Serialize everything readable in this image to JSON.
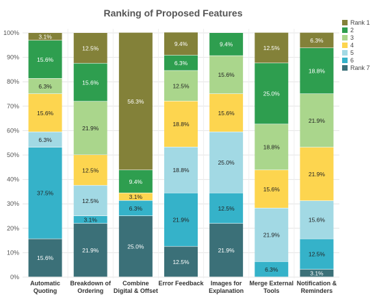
{
  "chart_data": {
    "type": "bar",
    "stacked": true,
    "title": "Ranking of Proposed Features",
    "xlabel": "",
    "ylabel": "",
    "ylim": [
      0,
      100
    ],
    "yticks": [
      "0%",
      "10%",
      "20%",
      "30%",
      "40%",
      "50%",
      "60%",
      "70%",
      "80%",
      "90%",
      "100%"
    ],
    "categories": [
      [
        "Automatic",
        "Quoting"
      ],
      [
        "Breakdown of",
        "Ordering"
      ],
      [
        "Combine",
        "Digital & Offset"
      ],
      [
        "Error Feedback"
      ],
      [
        "Images for",
        "Explanation"
      ],
      [
        "Merge External",
        "Tools"
      ],
      [
        "Notification &",
        "Reminders"
      ]
    ],
    "legend_position": "right",
    "series": [
      {
        "name": "Rank 7",
        "color": "#3b7078",
        "text_color": "#ffffff",
        "values": [
          15.6,
          21.9,
          25.0,
          12.5,
          21.9,
          0,
          3.1
        ],
        "labels": [
          "15.6%",
          "21.9%",
          "25.0%",
          "12.5%",
          "21.9%",
          "",
          "3.1%"
        ]
      },
      {
        "name": "6",
        "color": "#35b2c9",
        "text_color": "#222222",
        "values": [
          37.5,
          3.1,
          6.3,
          21.9,
          12.5,
          6.3,
          12.5
        ],
        "labels": [
          "37.5%",
          "3.1%",
          "6.3%",
          "21.9%",
          "12.5%",
          "6.3%",
          "12.5%"
        ]
      },
      {
        "name": "5",
        "color": "#a2d9e4",
        "text_color": "#222222",
        "values": [
          6.3,
          12.5,
          0,
          18.8,
          25.0,
          21.9,
          15.6
        ],
        "labels": [
          "6.3%",
          "12.5%",
          "",
          "18.8%",
          "25.0%",
          "21.9%",
          "15.6%"
        ]
      },
      {
        "name": "4",
        "color": "#fdd54f",
        "text_color": "#222222",
        "values": [
          15.6,
          12.5,
          3.1,
          18.8,
          15.6,
          15.6,
          21.9
        ],
        "labels": [
          "15.6%",
          "12.5%",
          "3.1%",
          "18.8%",
          "15.6%",
          "15.6%",
          "21.9%"
        ]
      },
      {
        "name": "3",
        "color": "#aad68c",
        "text_color": "#222222",
        "values": [
          6.3,
          21.9,
          0,
          12.5,
          15.6,
          18.8,
          21.9
        ],
        "labels": [
          "6.3%",
          "21.9%",
          "",
          "12.5%",
          "15.6%",
          "18.8%",
          "21.9%"
        ]
      },
      {
        "name": "2",
        "color": "#2e9e4f",
        "text_color": "#ffffff",
        "values": [
          15.6,
          15.6,
          9.4,
          6.3,
          9.4,
          25.0,
          18.8
        ],
        "labels": [
          "15.6%",
          "15.6%",
          "9.4%",
          "6.3%",
          "9.4%",
          "25.0%",
          "18.8%"
        ]
      },
      {
        "name": "Rank 1",
        "color": "#838139",
        "text_color": "#ffffff",
        "values": [
          3.1,
          12.5,
          56.3,
          9.4,
          0,
          12.5,
          6.3
        ],
        "labels": [
          "3.1%",
          "12.5%",
          "56.3%",
          "9.4%",
          "",
          "12.5%",
          "6.3%"
        ]
      }
    ],
    "legend_order": [
      "Rank 1",
      "2",
      "3",
      "4",
      "5",
      "6",
      "Rank 7"
    ]
  }
}
